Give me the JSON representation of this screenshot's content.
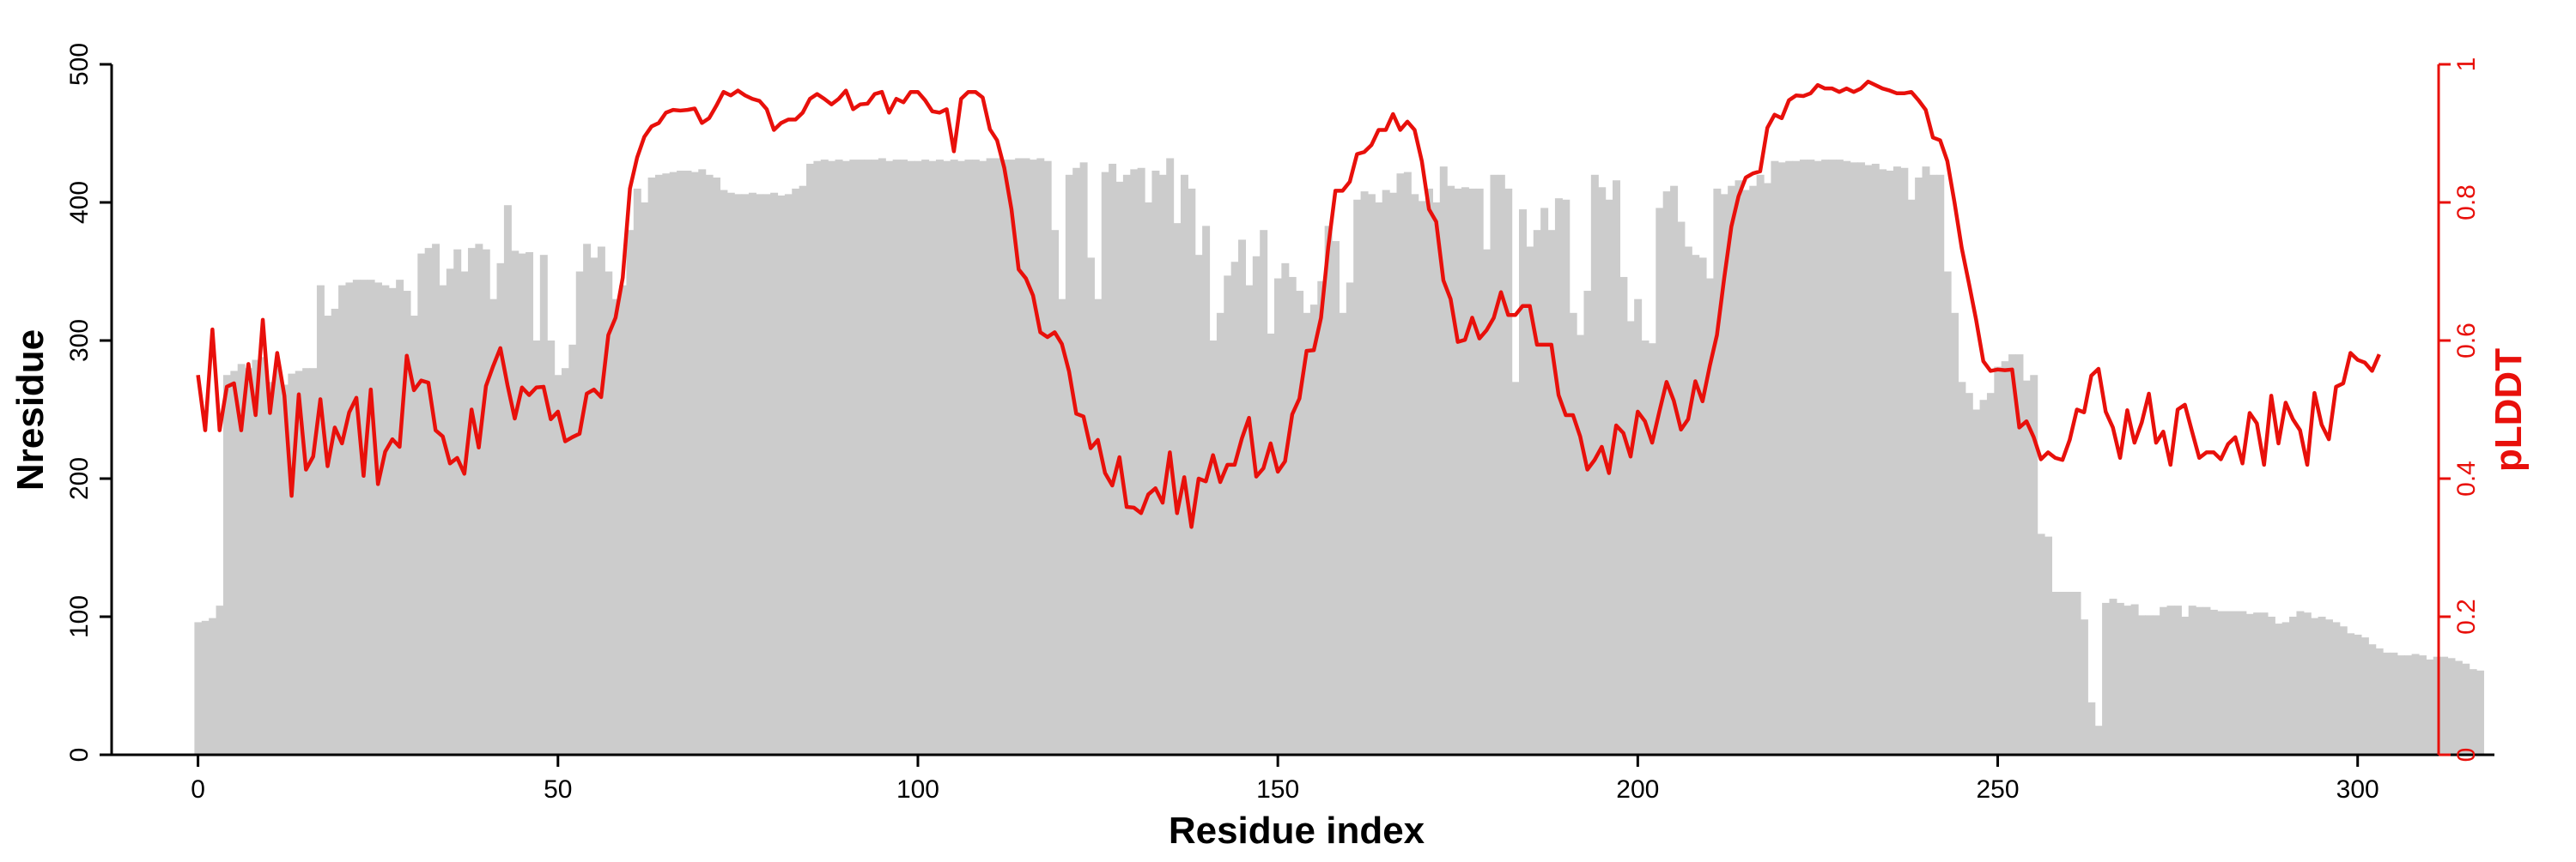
{
  "chart_data": {
    "type": "bar",
    "xlabel": "Residue index",
    "ylabel": "Nresidue",
    "y2label": "pLDDT",
    "xlim": [
      -12,
      319
    ],
    "ylim": [
      0,
      500
    ],
    "y2lim": [
      0,
      1
    ],
    "x_ticks": [
      "0",
      "50",
      "100",
      "150",
      "200",
      "250",
      "300"
    ],
    "y_ticks": [
      "0",
      "100",
      "200",
      "300",
      "400",
      "500"
    ],
    "y2_ticks": [
      "0",
      "0.2",
      "0.4",
      "0.6",
      "0.8",
      "1"
    ],
    "grid": false,
    "colors": {
      "bars": "#cccccc",
      "line": "#e8100b",
      "axis": "#000000",
      "y2axis": "#e8100b"
    },
    "series": [
      {
        "type": "bar",
        "axis": "left",
        "x_start": 0,
        "values": [
          96,
          97,
          99,
          108,
          275,
          278,
          283,
          280,
          286,
          288,
          270,
          280,
          268,
          276,
          278,
          280,
          280,
          340,
          318,
          323,
          340,
          342,
          344,
          344,
          344,
          342,
          340,
          338,
          344,
          336,
          318,
          363,
          367,
          370,
          340,
          352,
          366,
          350,
          367,
          370,
          366,
          330,
          356,
          398,
          365,
          363,
          364,
          300,
          362,
          300,
          275,
          280,
          297,
          350,
          370,
          360,
          368,
          350,
          330,
          340,
          380,
          410,
          400,
          418,
          420,
          421,
          422,
          423,
          423,
          422,
          424,
          420,
          418,
          409,
          407,
          406,
          406,
          407,
          406,
          406,
          407,
          405,
          406,
          410,
          412,
          428,
          430,
          431,
          430,
          431,
          430,
          431,
          431,
          431,
          431,
          432,
          430,
          431,
          431,
          430,
          430,
          431,
          430,
          431,
          430,
          431,
          430,
          431,
          431,
          430,
          432,
          432,
          431,
          431,
          432,
          432,
          431,
          432,
          430,
          380,
          330,
          420,
          425,
          429,
          360,
          330,
          422,
          428,
          415,
          420,
          424,
          425,
          400,
          423,
          420,
          432,
          385,
          420,
          410,
          362,
          383,
          300,
          320,
          347,
          357,
          373,
          340,
          361,
          380,
          305,
          345,
          356,
          346,
          336,
          320,
          326,
          343,
          383,
          372,
          320,
          342,
          402,
          408,
          406,
          400,
          409,
          407,
          421,
          422,
          406,
          401,
          410,
          400,
          426,
          412,
          410,
          411,
          410,
          410,
          366,
          420,
          420,
          410,
          270,
          395,
          368,
          380,
          396,
          380,
          403,
          402,
          320,
          304,
          336,
          420,
          411,
          402,
          416,
          346,
          314,
          330,
          300,
          298,
          396,
          408,
          412,
          386,
          368,
          362,
          360,
          345,
          410,
          406,
          412,
          416,
          409,
          412,
          420,
          414,
          430,
          429,
          430,
          430,
          431,
          431,
          430,
          431,
          431,
          431,
          430,
          429,
          429,
          427,
          428,
          424,
          423,
          426,
          425,
          402,
          418,
          426,
          420,
          420,
          350,
          320,
          270,
          262,
          250,
          257,
          262,
          281,
          285,
          290,
          290,
          271,
          275,
          160,
          158,
          118,
          118,
          118,
          118,
          98,
          38,
          21,
          110,
          113,
          110,
          108,
          109,
          101,
          101,
          101,
          107,
          108,
          108,
          100,
          108,
          107,
          107,
          105,
          104,
          104,
          104,
          104,
          102,
          103,
          103,
          100,
          95,
          96,
          100,
          104,
          103,
          99,
          100,
          98,
          96,
          93,
          88,
          87,
          85,
          80,
          77,
          74,
          74,
          72,
          72,
          73,
          72,
          69,
          71,
          71,
          70,
          68,
          66,
          62,
          61
        ]
      },
      {
        "type": "line",
        "axis": "right",
        "x_start": 0,
        "values": [
          0.55,
          0.47,
          0.616,
          0.47,
          0.533,
          0.538,
          0.47,
          0.566,
          0.492,
          0.63,
          0.495,
          0.582,
          0.52,
          0.375,
          0.522,
          0.413,
          0.432,
          0.515,
          0.418,
          0.474,
          0.451,
          0.496,
          0.517,
          0.404,
          0.529,
          0.392,
          0.439,
          0.457,
          0.446,
          0.578,
          0.528,
          0.542,
          0.539,
          0.47,
          0.461,
          0.422,
          0.43,
          0.407,
          0.5,
          0.445,
          0.534,
          0.563,
          0.589,
          0.535,
          0.487,
          0.532,
          0.521,
          0.532,
          0.533,
          0.486,
          0.497,
          0.454,
          0.46,
          0.465,
          0.523,
          0.529,
          0.518,
          0.608,
          0.633,
          0.691,
          0.82,
          0.865,
          0.895,
          0.91,
          0.915,
          0.93,
          0.934,
          0.933,
          0.934,
          0.936,
          0.915,
          0.922,
          0.94,
          0.96,
          0.955,
          0.962,
          0.955,
          0.95,
          0.947,
          0.935,
          0.905,
          0.915,
          0.92,
          0.92,
          0.93,
          0.95,
          0.957,
          0.95,
          0.942,
          0.95,
          0.962,
          0.935,
          0.942,
          0.943,
          0.957,
          0.96,
          0.93,
          0.95,
          0.945,
          0.96,
          0.96,
          0.948,
          0.932,
          0.93,
          0.935,
          0.874,
          0.95,
          0.96,
          0.96,
          0.952,
          0.906,
          0.89,
          0.85,
          0.79,
          0.703,
          0.69,
          0.665,
          0.612,
          0.605,
          0.612,
          0.595,
          0.555,
          0.494,
          0.49,
          0.444,
          0.456,
          0.408,
          0.39,
          0.431,
          0.359,
          0.358,
          0.35,
          0.377,
          0.386,
          0.365,
          0.438,
          0.35,
          0.402,
          0.33,
          0.4,
          0.396,
          0.434,
          0.395,
          0.42,
          0.42,
          0.458,
          0.488,
          0.403,
          0.415,
          0.451,
          0.41,
          0.425,
          0.493,
          0.516,
          0.585,
          0.586,
          0.633,
          0.735,
          0.817,
          0.817,
          0.83,
          0.87,
          0.873,
          0.883,
          0.905,
          0.905,
          0.928,
          0.905,
          0.917,
          0.905,
          0.86,
          0.79,
          0.772,
          0.687,
          0.66,
          0.598,
          0.601,
          0.633,
          0.603,
          0.615,
          0.633,
          0.67,
          0.637,
          0.637,
          0.65,
          0.65,
          0.594,
          0.594,
          0.594,
          0.521,
          0.492,
          0.492,
          0.461,
          0.413,
          0.427,
          0.446,
          0.408,
          0.477,
          0.466,
          0.432,
          0.497,
          0.483,
          0.452,
          0.497,
          0.54,
          0.513,
          0.471,
          0.486,
          0.541,
          0.512,
          0.563,
          0.608,
          0.69,
          0.765,
          0.809,
          0.836,
          0.842,
          0.845,
          0.908,
          0.927,
          0.922,
          0.948,
          0.955,
          0.954,
          0.958,
          0.97,
          0.965,
          0.965,
          0.96,
          0.965,
          0.96,
          0.965,
          0.975,
          0.97,
          0.965,
          0.962,
          0.958,
          0.958,
          0.96,
          0.948,
          0.934,
          0.894,
          0.89,
          0.86,
          0.8,
          0.734,
          0.683,
          0.63,
          0.57,
          0.556,
          0.558,
          0.557,
          0.558,
          0.474,
          0.483,
          0.46,
          0.428,
          0.438,
          0.43,
          0.427,
          0.456,
          0.5,
          0.496,
          0.549,
          0.559,
          0.497,
          0.474,
          0.43,
          0.499,
          0.452,
          0.481,
          0.523,
          0.452,
          0.468,
          0.42,
          0.5,
          0.507,
          0.468,
          0.43,
          0.438,
          0.438,
          0.428,
          0.45,
          0.46,
          0.422,
          0.495,
          0.48,
          0.42,
          0.52,
          0.451,
          0.51,
          0.486,
          0.47,
          0.42,
          0.524,
          0.478,
          0.457,
          0.533,
          0.538,
          0.582,
          0.572,
          0.568,
          0.556,
          0.58
        ]
      }
    ]
  }
}
